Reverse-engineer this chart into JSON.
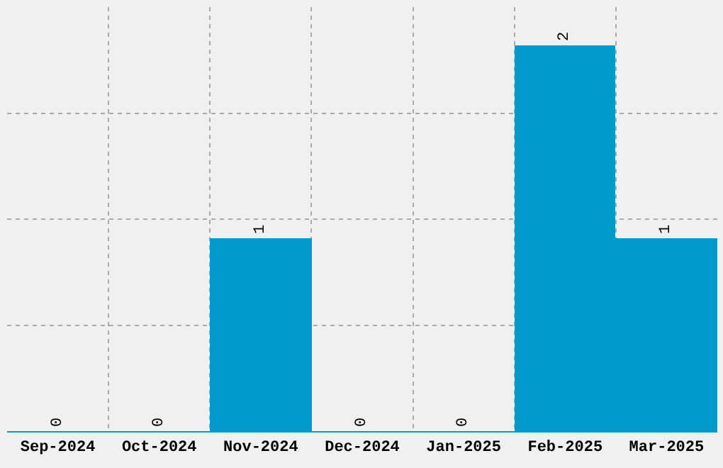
{
  "chart_data": {
    "type": "bar",
    "categories": [
      "Sep-2024",
      "Oct-2024",
      "Nov-2024",
      "Dec-2024",
      "Jan-2025",
      "Feb-2025",
      "Mar-2025"
    ],
    "values": [
      0,
      0,
      1,
      0,
      0,
      2,
      1
    ],
    "color": "#0099cc",
    "ylim": [
      0,
      2.2
    ],
    "yticks": [
      {
        "value": 0,
        "label": null
      },
      {
        "value": 0.55,
        "label": null
      },
      {
        "value": 1.1,
        "label": null
      },
      {
        "value": 1.65,
        "label": null
      }
    ],
    "grid": true,
    "data_labels": true,
    "tick_labels": "x"
  }
}
